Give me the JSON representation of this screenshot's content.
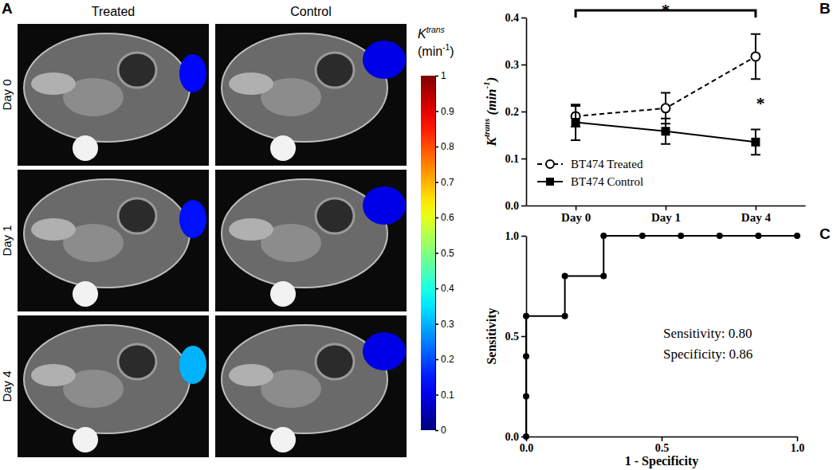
{
  "chart_data": [
    {
      "type": "image_grid",
      "panel": "A",
      "columns": [
        "Treated",
        "Control"
      ],
      "rows": [
        "Day 0",
        "Day 1",
        "Day 4"
      ],
      "values": [
        [
          0.13,
          0.1
        ],
        [
          0.14,
          0.1
        ],
        [
          0.3,
          0.1
        ]
      ],
      "colorbar": {
        "label": [
          [
            "K",
            "trans"
          ],
          [
            "(min",
            "-1",
            ")"
          ]
        ],
        "range": [
          0,
          1
        ],
        "ticks": [
          0,
          0.1,
          0.2,
          0.3,
          0.4,
          0.5,
          0.6,
          0.7,
          0.8,
          0.9,
          1
        ]
      }
    },
    {
      "type": "line",
      "panel": "B",
      "categories": [
        "Day 0",
        "Day 1",
        "Day 4"
      ],
      "y_label": [
        "K",
        "trans",
        " (min",
        "-1",
        ")"
      ],
      "ylim": [
        0,
        0.4
      ],
      "yticks": [
        {
          "value": 0,
          "label": "0.0"
        },
        0.1,
        0.2,
        0.3,
        0.4
      ],
      "legend": "lower left",
      "series": [
        {
          "name": "BT474 Treated",
          "color": "#000000",
          "marker": "open-circle",
          "line_style": "dashed",
          "values": [
            0.19,
            0.207,
            0.317
          ],
          "errors": [
            0.022,
            0.033,
            0.048
          ]
        },
        {
          "name": "BT474 Control",
          "color": "#000000",
          "marker": "square",
          "line_style": "solid",
          "values": [
            0.177,
            0.158,
            0.135
          ],
          "errors": [
            0.038,
            0.027,
            0.027
          ]
        }
      ],
      "annotations": [
        {
          "text": "*",
          "from": "Day 0",
          "to": "Day 4"
        },
        {
          "text": "*",
          "at": "Day 4"
        }
      ]
    },
    {
      "type": "line",
      "panel": "C",
      "x": [
        0,
        0,
        0,
        0,
        0.143,
        0.143,
        0.286,
        0.286,
        0.429,
        0.571,
        0.714,
        0.857,
        1
      ],
      "series": [
        {
          "color": "#000000",
          "marker": "circle",
          "line_style": "step",
          "values": [
            0,
            0.2,
            0.4,
            0.6,
            0.6,
            0.8,
            0.8,
            1,
            1,
            1,
            1,
            1,
            1
          ]
        }
      ],
      "x_label": "1 - Specificity",
      "y_label": "Sensitivity",
      "xlim": [
        0,
        1
      ],
      "xticks": [
        {
          "value": 0,
          "label": "0.0"
        },
        0.5,
        {
          "value": 1,
          "label": "1.0"
        }
      ],
      "ylim": [
        0,
        1
      ],
      "yticks": [
        {
          "value": 0,
          "label": "0.0"
        },
        0.5,
        {
          "value": 1,
          "label": "1.0"
        }
      ],
      "annotations": [
        "Sensitivity: 0.80",
        "Specificity: 0.86"
      ]
    }
  ]
}
